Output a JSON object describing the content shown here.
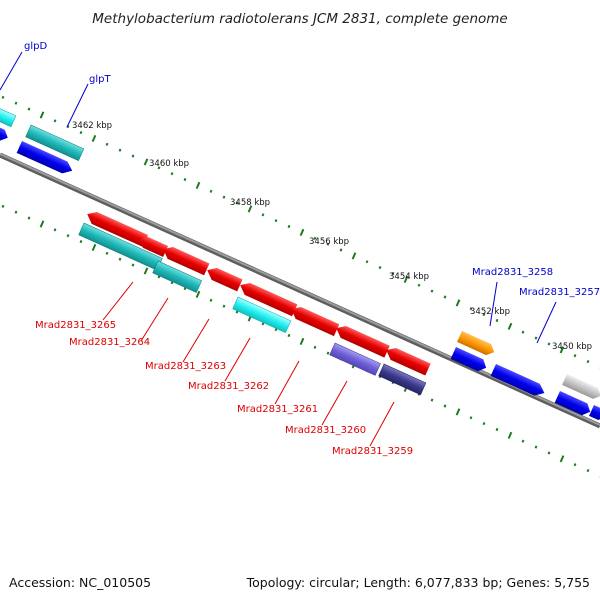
{
  "title": "Methylobacterium radiotolerans JCM 2831, complete genome",
  "footer": {
    "accession": "Accession: NC_010505",
    "summary": "Topology: circular; Length: 6,077,833 bp; Genes: 5,755"
  },
  "colors": {
    "backbone": "#7a7a7a",
    "tick": "#1f7a1f",
    "label_blue": "#0000cc",
    "label_red": "#dd0000"
  },
  "ticks": [
    "3462 kbp",
    "3460 kbp",
    "3458 kbp",
    "3456 kbp",
    "3454 kbp",
    "3452 kbp",
    "3450 kbp"
  ],
  "gene_labels": [
    {
      "text": "glpD",
      "color": "blue"
    },
    {
      "text": "glpT",
      "color": "blue"
    },
    {
      "text": "Mrad2831_3258",
      "color": "blue"
    },
    {
      "text": "Mrad2831_3257",
      "color": "blue"
    },
    {
      "text": "Mrad2831_3265",
      "color": "red"
    },
    {
      "text": "Mrad2831_3264",
      "color": "red"
    },
    {
      "text": "Mrad2831_3263",
      "color": "red"
    },
    {
      "text": "Mrad2831_3262",
      "color": "red"
    },
    {
      "text": "Mrad2831_3261",
      "color": "red"
    },
    {
      "text": "Mrad2831_3260",
      "color": "red"
    },
    {
      "text": "Mrad2831_3259",
      "color": "red"
    }
  ]
}
